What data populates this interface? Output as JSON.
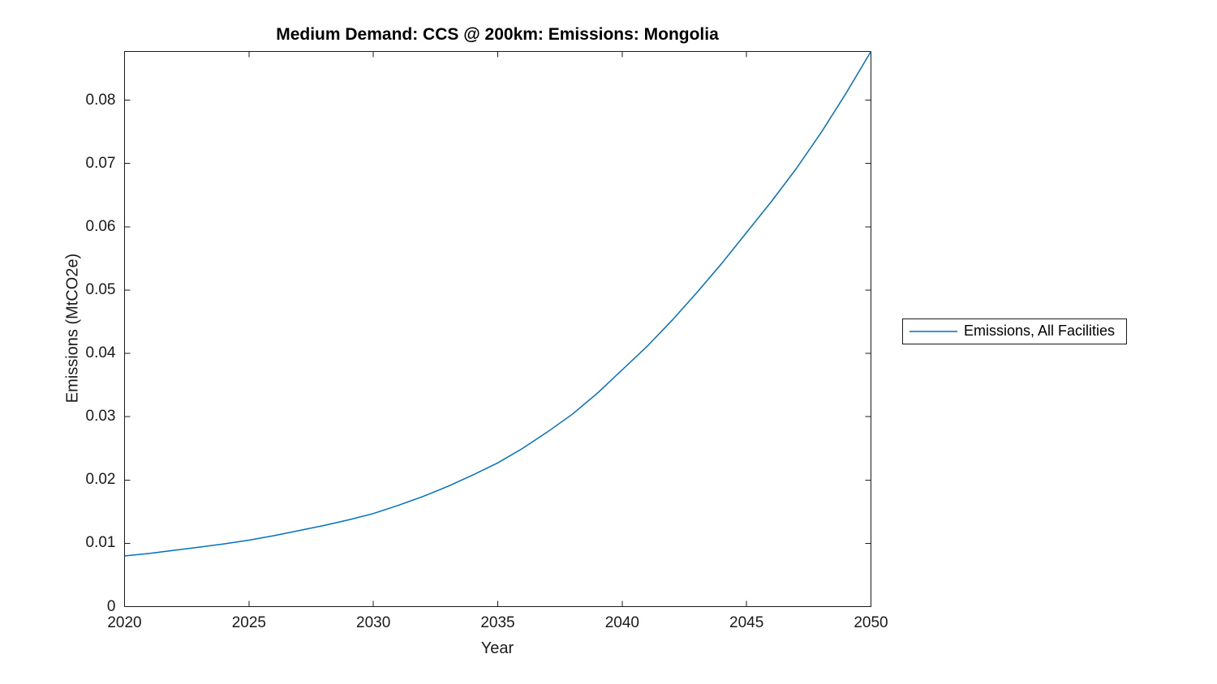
{
  "figure": {
    "title": "Medium Demand: CCS @ 200km: Emissions: Mongolia",
    "xlabel": "Year",
    "ylabel": "Emissions (MtCO2e)"
  },
  "legend": {
    "entries": [
      {
        "label": "Emissions, All Facilities",
        "color": "#0072BD"
      }
    ]
  },
  "colors": {
    "line": "#0072BD",
    "axis": "#1a1a1a",
    "background": "#ffffff"
  },
  "chart_data": {
    "type": "line",
    "title": "Medium Demand: CCS @ 200km: Emissions: Mongolia",
    "xlabel": "Year",
    "ylabel": "Emissions (MtCO2e)",
    "x": [
      2020,
      2021,
      2022,
      2023,
      2024,
      2025,
      2026,
      2027,
      2028,
      2029,
      2030,
      2031,
      2032,
      2033,
      2034,
      2035,
      2036,
      2037,
      2038,
      2039,
      2040,
      2041,
      2042,
      2043,
      2044,
      2045,
      2046,
      2047,
      2048,
      2049,
      2050
    ],
    "series": [
      {
        "name": "Emissions, All Facilities",
        "color": "#0072BD",
        "values": [
          0.008,
          0.0084,
          0.0089,
          0.0094,
          0.0099,
          0.0105,
          0.0112,
          0.012,
          0.0128,
          0.0137,
          0.0147,
          0.016,
          0.0174,
          0.019,
          0.0208,
          0.0227,
          0.025,
          0.0276,
          0.0304,
          0.0337,
          0.0374,
          0.0411,
          0.0452,
          0.0496,
          0.0542,
          0.0591,
          0.064,
          0.0692,
          0.0749,
          0.0811,
          0.0877
        ]
      }
    ],
    "xlim": [
      2020,
      2050
    ],
    "ylim": [
      0,
      0.0877
    ],
    "xticks": [
      2020,
      2025,
      2030,
      2035,
      2040,
      2045,
      2050
    ],
    "xtick_labels": [
      "2020",
      "2025",
      "2030",
      "2035",
      "2040",
      "2045",
      "2050"
    ],
    "yticks": [
      0,
      0.01,
      0.02,
      0.03,
      0.04,
      0.05,
      0.06,
      0.07,
      0.08
    ],
    "ytick_labels": [
      "0",
      "0.01",
      "0.02",
      "0.03",
      "0.04",
      "0.05",
      "0.06",
      "0.07",
      "0.08"
    ],
    "grid": false,
    "legend_position": "right-outside"
  }
}
